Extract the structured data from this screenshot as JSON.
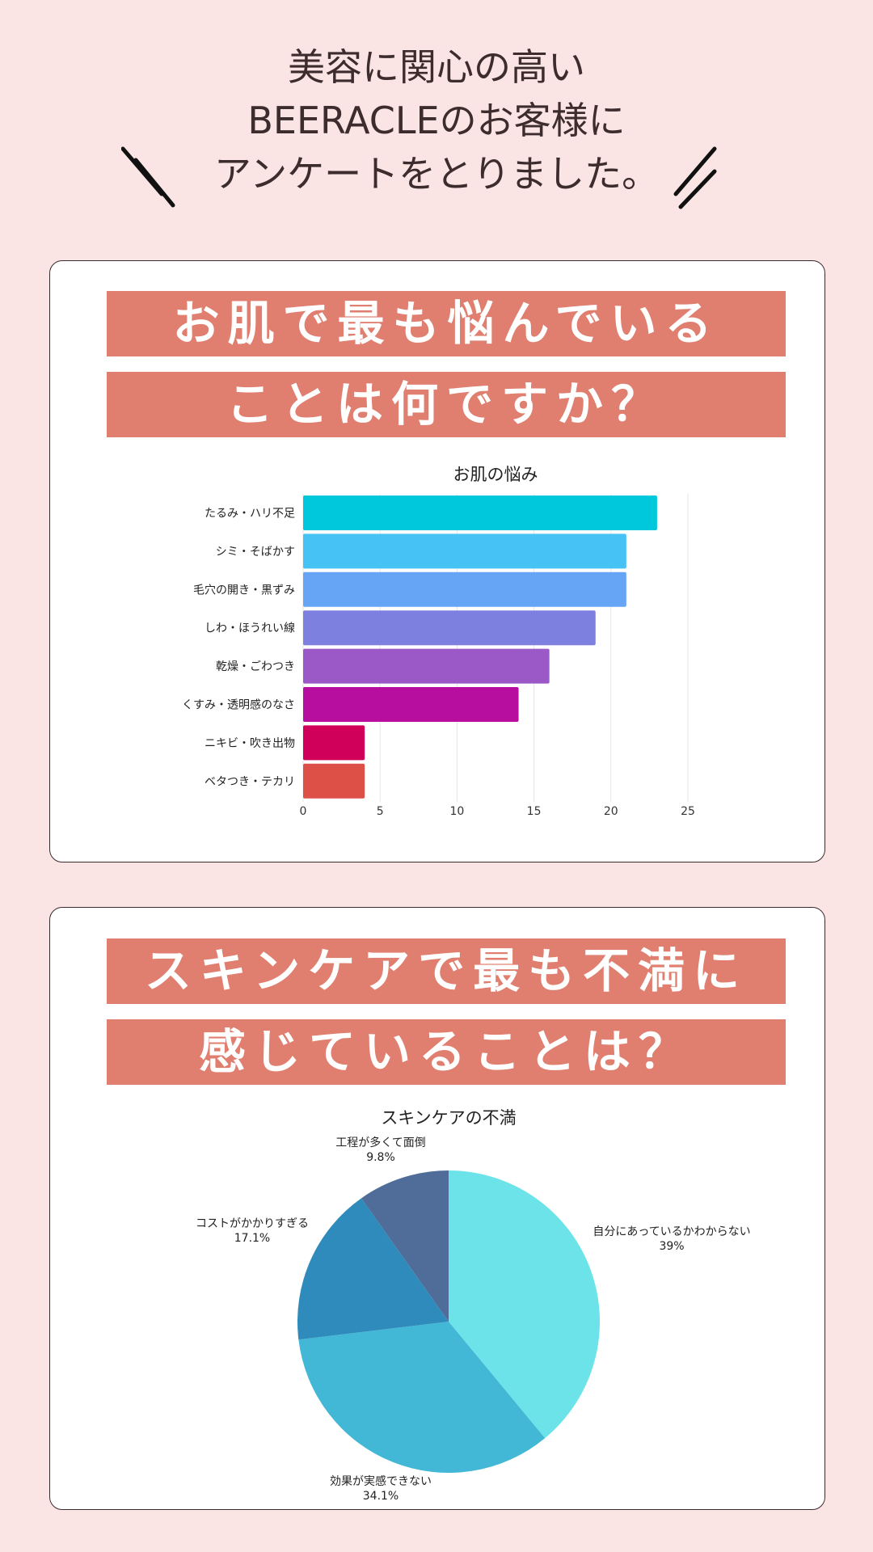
{
  "intro": {
    "lines": [
      "美容に関心の高い",
      "BEERACLEのお客様に",
      "アンケートをとりました。"
    ]
  },
  "section1": {
    "banner_lines": [
      "お肌で最も悩んでいる",
      "ことは何ですか？"
    ]
  },
  "section2": {
    "banner_lines": [
      "スキンケアで最も不満に",
      "感じていることは？"
    ]
  },
  "colors": {
    "background": "#fbe5e4",
    "banner": "#e07f6f"
  },
  "chart_data": [
    {
      "type": "bar",
      "orientation": "horizontal",
      "title": "お肌の悩み",
      "categories": [
        "たるみ・ハリ不足",
        "シミ・そばかす",
        "毛穴の開き・黒ずみ",
        "しわ・ほうれい線",
        "乾燥・ごわつき",
        "くすみ・透明感のなさ",
        "ニキビ・吹き出物",
        "ベタつき・テカリ"
      ],
      "values": [
        23,
        21,
        21,
        19,
        16,
        14,
        4,
        4
      ],
      "colors": [
        "#00c8dc",
        "#47c2f5",
        "#66a5f5",
        "#7e80e0",
        "#9b59c8",
        "#b80ea0",
        "#d0005a",
        "#dd5048"
      ],
      "xlim": [
        0,
        25
      ],
      "xticks": [
        "0",
        "5",
        "10",
        "15",
        "20",
        "25"
      ],
      "grid": true
    },
    {
      "type": "pie",
      "title": "スキンケアの不満",
      "slices": [
        {
          "label": "自分にあっているかわからない",
          "value": 39,
          "display": "39%",
          "color": "#6be3e8"
        },
        {
          "label": "効果が実感できない",
          "value": 34.1,
          "display": "34.1%",
          "color": "#42b7d6"
        },
        {
          "label": "コストがかかりすぎる",
          "value": 17.1,
          "display": "17.1%",
          "color": "#2e8bbb"
        },
        {
          "label": "工程が多くて面倒",
          "value": 9.8,
          "display": "9.8%",
          "color": "#4f6d98"
        }
      ]
    }
  ]
}
